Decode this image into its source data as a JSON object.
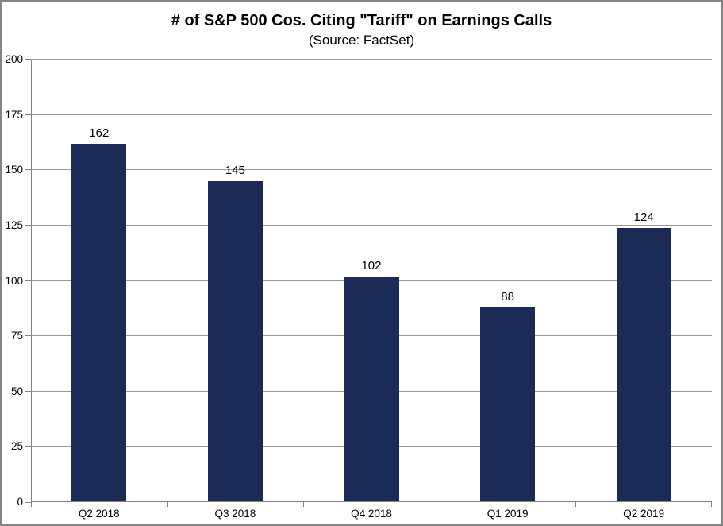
{
  "chart_data": {
    "type": "bar",
    "title": "# of S&P 500 Cos. Citing \"Tariff\" on Earnings Calls",
    "subtitle": "(Source: FactSet)",
    "categories": [
      "Q2 2018",
      "Q3 2018",
      "Q4 2018",
      "Q1 2019",
      "Q2 2019"
    ],
    "values": [
      162,
      145,
      102,
      88,
      124
    ],
    "data_labels": [
      162,
      145,
      102,
      88,
      124
    ],
    "xlabel": "",
    "ylabel": "",
    "ylim": [
      0,
      200
    ],
    "yticks": [
      0,
      25,
      50,
      75,
      100,
      125,
      150,
      175,
      200
    ],
    "grid": "horizontal",
    "legend_position": "none",
    "colors": {
      "bar_fill": "#1C2B55",
      "gridline": "#999999",
      "axis_line": "#808080",
      "text": "#000000",
      "border": "#848484",
      "background": "#FFFFFF"
    }
  }
}
